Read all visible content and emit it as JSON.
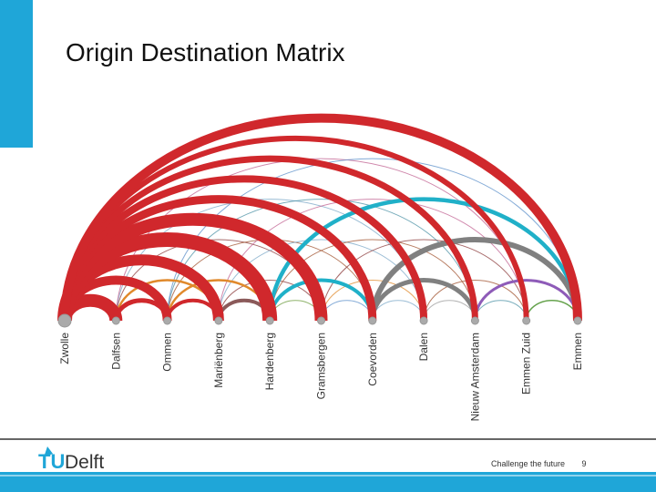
{
  "header": {
    "title": "Origin Destination Matrix"
  },
  "nodes": [
    {
      "label": "Zwolle"
    },
    {
      "label": "Dalfsen"
    },
    {
      "label": "Ommen"
    },
    {
      "label": "Mariënberg"
    },
    {
      "label": "Hardenberg"
    },
    {
      "label": "Gramsbergen"
    },
    {
      "label": "Coevorden"
    },
    {
      "label": "Dalen"
    },
    {
      "label": "Nieuw Amsterdam"
    },
    {
      "label": "Emmen Zuid"
    },
    {
      "label": "Emmen"
    }
  ],
  "footer": {
    "logo_tu": "TU",
    "logo_delft": "Delft",
    "tagline": "Challenge the future",
    "page": "9"
  }
}
